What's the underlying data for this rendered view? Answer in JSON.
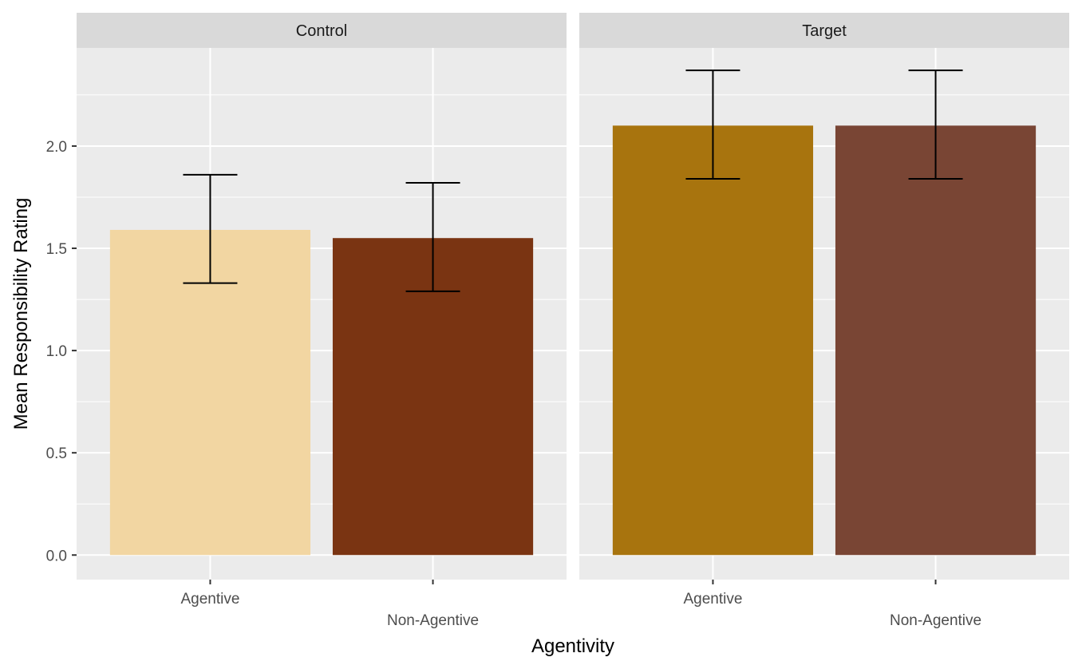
{
  "chart_data": {
    "type": "bar",
    "xlabel": "Agentivity",
    "ylabel": "Mean Responsibility Rating",
    "ylim": [
      -0.12,
      2.48
    ],
    "yticks": [
      0.0,
      0.5,
      1.0,
      1.5,
      2.0
    ],
    "ytick_labels": [
      "0.0",
      "0.5",
      "1.0",
      "1.5",
      "2.0"
    ],
    "grid": true,
    "panels": [
      {
        "label": "Control",
        "categories": [
          "Agentive",
          "Non-Agentive"
        ],
        "values": [
          1.59,
          1.55
        ],
        "error_low": [
          1.33,
          1.29
        ],
        "error_high": [
          1.86,
          1.82
        ],
        "colors": [
          "#F2D6A2",
          "#7A3412"
        ]
      },
      {
        "label": "Target",
        "categories": [
          "Agentive",
          "Non-Agentive"
        ],
        "values": [
          2.1,
          2.1
        ],
        "error_low": [
          1.84,
          1.84
        ],
        "error_high": [
          2.37,
          2.37
        ],
        "colors": [
          "#A8740E",
          "#794534"
        ]
      }
    ]
  }
}
